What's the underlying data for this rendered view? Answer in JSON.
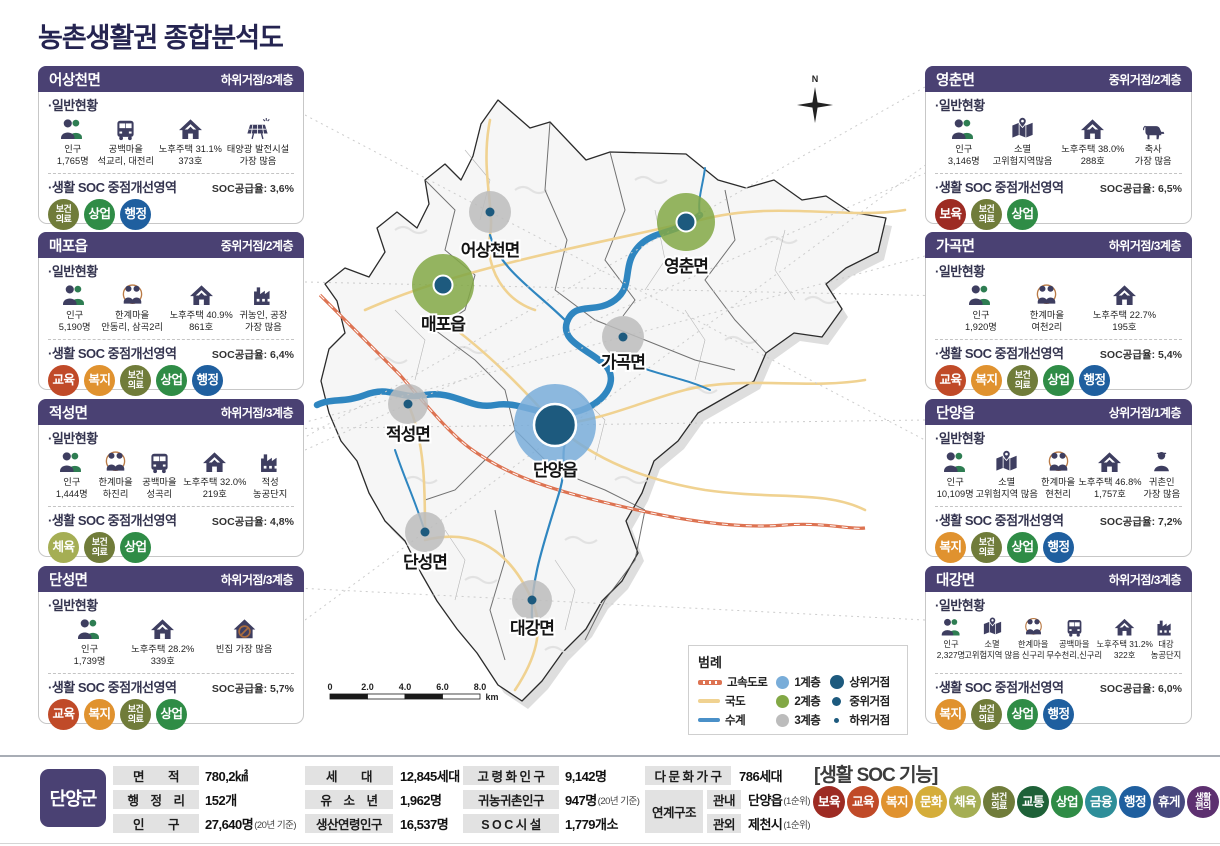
{
  "title": "농촌생활권 종합분석도",
  "badge_colors": {
    "보육": "#9d2b23",
    "교육": "#c04a28",
    "복지": "#e0922f",
    "문화": "#d5ad3a",
    "체육": "#a5ae54",
    "보건의료": "#707c3a",
    "교통": "#1e6138",
    "상업": "#2f8c46",
    "금융": "#2e8e99",
    "행정": "#1f5f9f",
    "휴게": "#47497f",
    "생활편의": "#5d3070"
  },
  "panels": [
    {
      "side": "left",
      "name": "어상천면",
      "tier": "하위거점/3계층",
      "general_label": "·일반현황",
      "soc_label": "·생활 SOC 중점개선영역",
      "soc_rate": "SOC공급율: 3,6%",
      "stats": [
        {
          "icon": "people",
          "lines": [
            "인구",
            "1,765명"
          ]
        },
        {
          "icon": "bus",
          "lines": [
            "공백마을",
            "석교리, 대전리"
          ]
        },
        {
          "icon": "house",
          "lines": [
            "노후주택 31.1%",
            "373호"
          ]
        },
        {
          "icon": "solar",
          "lines": [
            "태양광 발전시설",
            "가장 많음"
          ]
        }
      ],
      "badges": [
        "보건의료",
        "상업",
        "행정"
      ]
    },
    {
      "side": "left",
      "name": "매포읍",
      "tier": "중위거점/2계층",
      "general_label": "·일반현황",
      "soc_label": "·생활 SOC 중점개선영역",
      "soc_rate": "SOC공급율: 6,4%",
      "stats": [
        {
          "icon": "people",
          "lines": [
            "인구",
            "5,190명"
          ]
        },
        {
          "icon": "pair",
          "lines": [
            "한계마을",
            "안동리, 삼곡2리"
          ]
        },
        {
          "icon": "house",
          "lines": [
            "노후주택 40.9%",
            "861호"
          ]
        },
        {
          "icon": "factory",
          "lines": [
            "귀농인, 공장",
            "가장 많음"
          ]
        }
      ],
      "badges": [
        "교육",
        "복지",
        "보건의료",
        "상업",
        "행정"
      ]
    },
    {
      "side": "left",
      "name": "적성면",
      "tier": "하위거점/3계층",
      "general_label": "·일반현황",
      "soc_label": "·생활 SOC 중점개선영역",
      "soc_rate": "SOC공급율: 4,8%",
      "stats": [
        {
          "icon": "people",
          "lines": [
            "인구",
            "1,444명"
          ]
        },
        {
          "icon": "pair",
          "lines": [
            "한계마을",
            "하진리"
          ]
        },
        {
          "icon": "bus",
          "lines": [
            "공백마을",
            "성곡리"
          ]
        },
        {
          "icon": "house",
          "lines": [
            "노후주택 32.0%",
            "219호"
          ]
        },
        {
          "icon": "factory",
          "lines": [
            "적성",
            "농공단지"
          ]
        }
      ],
      "badges": [
        "체육",
        "보건의료",
        "상업"
      ]
    },
    {
      "side": "left",
      "name": "단성면",
      "tier": "하위거점/3계층",
      "general_label": "·일반현황",
      "soc_label": "·생활 SOC 중점개선영역",
      "soc_rate": "SOC공급율: 5,7%",
      "stats": [
        {
          "icon": "people",
          "lines": [
            "인구",
            "1,739명"
          ]
        },
        {
          "icon": "house",
          "lines": [
            "노후주택 28.2%",
            "339호"
          ]
        },
        {
          "icon": "house-x",
          "lines": [
            "빈집 가장 많음",
            ""
          ]
        }
      ],
      "badges": [
        "교육",
        "복지",
        "보건의료",
        "상업"
      ]
    },
    {
      "side": "right",
      "name": "영춘면",
      "tier": "중위거점/2계층",
      "general_label": "·일반현황",
      "soc_label": "·생활 SOC 중점개선영역",
      "soc_rate": "SOC공급율: 6,5%",
      "stats": [
        {
          "icon": "people",
          "lines": [
            "인구",
            "3,146명"
          ]
        },
        {
          "icon": "map",
          "lines": [
            "소멸",
            "고위험지역많음"
          ]
        },
        {
          "icon": "house",
          "lines": [
            "노후주택 38.0%",
            "288호"
          ]
        },
        {
          "icon": "cow",
          "lines": [
            "축사",
            "가장 많음"
          ]
        }
      ],
      "badges": [
        "보육",
        "보건의료",
        "상업"
      ]
    },
    {
      "side": "right",
      "name": "가곡면",
      "tier": "하위거점/3계층",
      "general_label": "·일반현황",
      "soc_label": "·생활 SOC 중점개선영역",
      "soc_rate": "SOC공급율: 5,4%",
      "stats": [
        {
          "icon": "people",
          "lines": [
            "인구",
            "1,920명"
          ]
        },
        {
          "icon": "pair",
          "lines": [
            "한계마을",
            "여천2리"
          ]
        },
        {
          "icon": "house",
          "lines": [
            "노후주택 22.7%",
            "195호"
          ]
        }
      ],
      "badges": [
        "교육",
        "복지",
        "보건의료",
        "상업",
        "행정"
      ]
    },
    {
      "side": "right",
      "name": "단양읍",
      "tier": "상위거점/1계층",
      "general_label": "·일반현황",
      "soc_label": "·생활 SOC 중점개선영역",
      "soc_rate": "SOC공급율: 7,2%",
      "stats": [
        {
          "icon": "people",
          "lines": [
            "인구",
            "10,109명"
          ]
        },
        {
          "icon": "map",
          "lines": [
            "소멸",
            "고위험지역 많음"
          ]
        },
        {
          "icon": "pair",
          "lines": [
            "한계마을",
            "현천리"
          ]
        },
        {
          "icon": "house",
          "lines": [
            "노후주택 46.8%",
            "1,757호"
          ]
        },
        {
          "icon": "person",
          "lines": [
            "귀촌인",
            "가장 많음"
          ]
        }
      ],
      "badges": [
        "복지",
        "보건의료",
        "상업",
        "행정"
      ]
    },
    {
      "side": "right",
      "name": "대강면",
      "tier": "하위거점/3계층",
      "general_label": "·일반현황",
      "soc_label": "·생활 SOC 중점개선영역",
      "soc_rate": "SOC공급율: 6,0%",
      "stats": [
        {
          "icon": "people",
          "lines": [
            "인구",
            "2,327명"
          ]
        },
        {
          "icon": "map",
          "lines": [
            "소멸",
            "고위험지역 많음"
          ]
        },
        {
          "icon": "pair",
          "lines": [
            "한계마을",
            "신구리"
          ]
        },
        {
          "icon": "bus",
          "lines": [
            "공백마을",
            "무수천리,신구리"
          ]
        },
        {
          "icon": "house",
          "lines": [
            "노후주택 31.2%",
            "322호"
          ]
        },
        {
          "icon": "factory",
          "lines": [
            "대강",
            "농공단지"
          ]
        }
      ],
      "badges": [
        "복지",
        "보건의료",
        "상업",
        "행정"
      ]
    }
  ],
  "map": {
    "compass": "N",
    "scale": {
      "labels": [
        "0",
        "2.0",
        "4.0",
        "6.0",
        "8.0"
      ],
      "unit": "km"
    },
    "regions": [
      {
        "name": "어상천면",
        "tier": "3",
        "node": "하위"
      },
      {
        "name": "매포읍",
        "tier": "2",
        "node": "중위"
      },
      {
        "name": "영춘면",
        "tier": "2",
        "node": "중위"
      },
      {
        "name": "가곡면",
        "tier": "3",
        "node": "하위"
      },
      {
        "name": "단양읍",
        "tier": "1",
        "node": "상위"
      },
      {
        "name": "적성면",
        "tier": "3",
        "node": "하위"
      },
      {
        "name": "단성면",
        "tier": "3",
        "node": "하위"
      },
      {
        "name": "대강면",
        "tier": "3",
        "node": "하위"
      }
    ],
    "legend": {
      "title": "범례",
      "lines": [
        {
          "label": "고속도로",
          "type": "highway"
        },
        {
          "label": "국도",
          "type": "road"
        },
        {
          "label": "수계",
          "type": "river"
        }
      ],
      "tiers": [
        {
          "label": "1계층",
          "color": "#79add9"
        },
        {
          "label": "2계층",
          "color": "#82a845"
        },
        {
          "label": "3계층",
          "color": "#bcbcbc"
        }
      ],
      "nodes": [
        {
          "label": "상위거점",
          "size": 14
        },
        {
          "label": "중위거점",
          "size": 9
        },
        {
          "label": "하위거점",
          "size": 5
        }
      ]
    }
  },
  "footer": {
    "county": "단양군",
    "groups": [
      [
        {
          "label": "면　　적",
          "value": "780,2㎢",
          "note": ""
        },
        {
          "label": "행　정　리",
          "value": "152개",
          "note": ""
        },
        {
          "label": "인　　구",
          "value": "27,640명",
          "note": "(20년 기준)"
        }
      ],
      [
        {
          "label": "세　　대",
          "value": "12,845세대",
          "note": ""
        },
        {
          "label": "유　소　년",
          "value": "1,962명",
          "note": ""
        },
        {
          "label": "생산연령인구",
          "value": "16,537명",
          "note": ""
        }
      ],
      [
        {
          "label": "고 령 화 인 구",
          "value": "9,142명",
          "note": ""
        },
        {
          "label": "귀농귀촌인구",
          "value": "947명",
          "note": "(20년 기준)"
        },
        {
          "label": "S O C 시 설",
          "value": "1,779개소",
          "note": ""
        }
      ]
    ],
    "multicultural": {
      "label": "다 문 화 가 구",
      "value": "786세대"
    },
    "linkage": {
      "label": "연계구조",
      "rows": [
        {
          "key": "관내",
          "value": "단양읍",
          "note": "(1순위)"
        },
        {
          "key": "관외",
          "value": "제천시",
          "note": "(1순위)"
        }
      ]
    },
    "soc_functions": {
      "title": "[생활 SOC 기능]",
      "badges": [
        "보육",
        "교육",
        "복지",
        "문화",
        "체육",
        "보건의료",
        "교통",
        "상업",
        "금융",
        "행정",
        "휴게",
        "생활편의"
      ]
    }
  }
}
